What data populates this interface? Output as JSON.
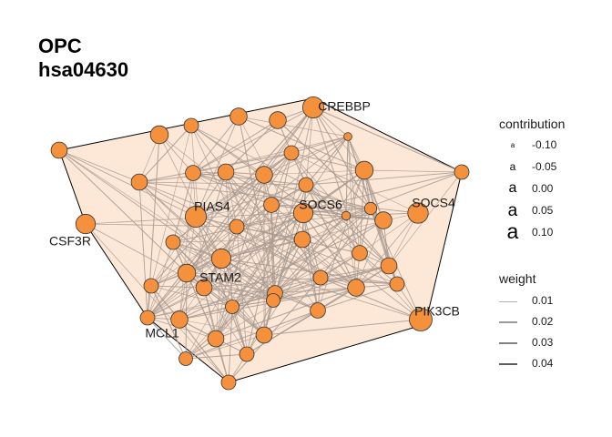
{
  "title": {
    "line1": "OPC",
    "line2": "hsa04630"
  },
  "colors": {
    "hull_fill": "#fde8d8",
    "hull_stroke": "#000000",
    "edge": "#a89a90",
    "node_fill": "#f5913d",
    "node_stroke": "#333333",
    "label": "#1a1a1a"
  },
  "nodes": [
    {
      "id": "CREBBP",
      "label": "CREBBP",
      "contribution": 0.08
    },
    {
      "id": "CSF3R",
      "label": "CSF3R",
      "contribution": 0.06
    },
    {
      "id": "PIAS4",
      "label": "PIAS4",
      "contribution": 0.08
    },
    {
      "id": "SOCS6",
      "label": "SOCS6",
      "contribution": 0.06
    },
    {
      "id": "SOCS4",
      "label": "SOCS4",
      "contribution": 0.07
    },
    {
      "id": "STAM2",
      "label": "STAM2",
      "contribution": 0.06
    },
    {
      "id": "MCL1",
      "label": "MCL1",
      "contribution": 0.0
    },
    {
      "id": "PIK3CB",
      "label": "PIK3CB",
      "contribution": 0.1
    },
    {
      "id": "n1",
      "label": "",
      "contribution": 0.02
    },
    {
      "id": "n2",
      "label": "",
      "contribution": 0.04
    },
    {
      "id": "n3",
      "label": "",
      "contribution": 0.0
    },
    {
      "id": "n4",
      "label": "",
      "contribution": 0.03
    },
    {
      "id": "n5",
      "label": "",
      "contribution": -0.08
    },
    {
      "id": "n6",
      "label": "",
      "contribution": 0.03
    },
    {
      "id": "n7",
      "label": "",
      "contribution": 0.0
    },
    {
      "id": "n8",
      "label": "",
      "contribution": 0.04
    },
    {
      "id": "n9",
      "label": "",
      "contribution": 0.0
    },
    {
      "id": "n10",
      "label": "",
      "contribution": 0.02
    },
    {
      "id": "n11",
      "label": "",
      "contribution": 0.01
    },
    {
      "id": "n12",
      "label": "",
      "contribution": 0.02
    },
    {
      "id": "n13",
      "label": "",
      "contribution": 0.03
    },
    {
      "id": "n14",
      "label": "",
      "contribution": 0.0
    },
    {
      "id": "n15",
      "label": "",
      "contribution": 0.01
    },
    {
      "id": "n16",
      "label": "",
      "contribution": -0.07
    },
    {
      "id": "n17",
      "label": "",
      "contribution": -0.03
    },
    {
      "id": "n18",
      "label": "",
      "contribution": 0.03
    },
    {
      "id": "n19",
      "label": "",
      "contribution": 0.0
    },
    {
      "id": "n20",
      "label": "",
      "contribution": 0.0
    },
    {
      "id": "n21",
      "label": "",
      "contribution": 0.02
    },
    {
      "id": "n22",
      "label": "",
      "contribution": 0.01
    },
    {
      "id": "n23",
      "label": "",
      "contribution": 0.04
    },
    {
      "id": "n24",
      "label": "",
      "contribution": 0.02
    },
    {
      "id": "n25",
      "label": "",
      "contribution": 0.0
    },
    {
      "id": "n26",
      "label": "",
      "contribution": 0.01
    },
    {
      "id": "n27",
      "label": "",
      "contribution": 0.0
    },
    {
      "id": "n28",
      "label": "",
      "contribution": 0.03
    },
    {
      "id": "n29",
      "label": "",
      "contribution": 0.02
    },
    {
      "id": "n30",
      "label": "",
      "contribution": 0.0
    },
    {
      "id": "n31",
      "label": "",
      "contribution": -0.01
    },
    {
      "id": "n32",
      "label": "",
      "contribution": 0.03
    },
    {
      "id": "n33",
      "label": "",
      "contribution": 0.01
    },
    {
      "id": "n34",
      "label": "",
      "contribution": 0.0
    },
    {
      "id": "n35",
      "label": "",
      "contribution": -0.01
    },
    {
      "id": "n36",
      "label": "",
      "contribution": 0.02
    },
    {
      "id": "n37",
      "label": "",
      "contribution": 0.0
    },
    {
      "id": "n38",
      "label": "",
      "contribution": 0.02
    },
    {
      "id": "n39",
      "label": "",
      "contribution": -0.01
    }
  ],
  "legend_contribution": {
    "title": "contribution",
    "glyph": "a",
    "items": [
      {
        "label": "-0.10",
        "value": -0.1
      },
      {
        "label": "-0.05",
        "value": -0.05
      },
      {
        "label": "0.00",
        "value": 0.0
      },
      {
        "label": "0.05",
        "value": 0.05
      },
      {
        "label": "0.10",
        "value": 0.1
      }
    ]
  },
  "legend_weight": {
    "title": "weight",
    "items": [
      {
        "label": "0.01",
        "value": 0.01
      },
      {
        "label": "0.02",
        "value": 0.02
      },
      {
        "label": "0.03",
        "value": 0.03
      },
      {
        "label": "0.04",
        "value": 0.04
      }
    ]
  }
}
